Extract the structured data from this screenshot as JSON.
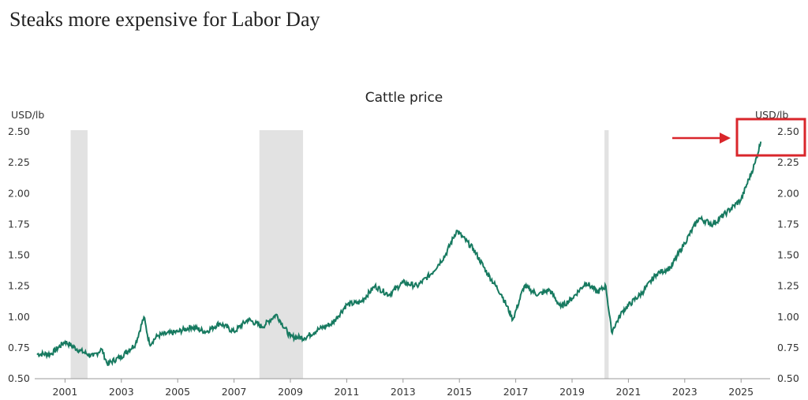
{
  "headline": "Steaks more expensive for Labor Day",
  "chart_data": {
    "type": "line",
    "title": "Cattle price",
    "ylabel_left": "USD/lb",
    "ylabel_right": "USD/lb",
    "ylim": [
      0.5,
      2.5
    ],
    "yticks": [
      "0.50",
      "0.75",
      "1.00",
      "1.25",
      "1.50",
      "1.75",
      "2.00",
      "2.25",
      "2.50"
    ],
    "xlim": [
      2000,
      2026.2
    ],
    "xticks": [
      "2001",
      "2003",
      "2005",
      "2007",
      "2009",
      "2011",
      "2013",
      "2015",
      "2017",
      "2019",
      "2021",
      "2023",
      "2025"
    ],
    "grid": false,
    "line_color": "#177a60",
    "recession_color": "#e2e2e2",
    "highlight_color": "#d9262b",
    "recessions": [
      [
        2001.2,
        2001.8
      ],
      [
        2007.9,
        2009.45
      ],
      [
        2020.15,
        2020.3
      ]
    ],
    "highlight": "latest value near 2.50",
    "series": [
      {
        "name": "Cattle price",
        "x": [
          2000.0,
          2000.5,
          2001.0,
          2001.5,
          2002.0,
          2002.3,
          2002.5,
          2003.0,
          2003.5,
          2003.8,
          2004.0,
          2004.3,
          2005.0,
          2005.5,
          2006.0,
          2006.5,
          2007.0,
          2007.5,
          2008.0,
          2008.5,
          2009.0,
          2009.5,
          2010.0,
          2010.5,
          2011.0,
          2011.5,
          2012.0,
          2012.5,
          2013.0,
          2013.5,
          2014.0,
          2014.5,
          2014.9,
          2015.5,
          2016.0,
          2016.5,
          2016.9,
          2017.3,
          2017.8,
          2018.2,
          2018.6,
          2019.0,
          2019.5,
          2019.9,
          2020.2,
          2020.4,
          2020.8,
          2021.5,
          2022.0,
          2022.5,
          2023.0,
          2023.5,
          2024.0,
          2024.5,
          2025.0,
          2025.5,
          2025.7
        ],
        "values": [
          0.7,
          0.7,
          0.8,
          0.73,
          0.68,
          0.74,
          0.62,
          0.68,
          0.78,
          1.0,
          0.78,
          0.85,
          0.88,
          0.92,
          0.88,
          0.95,
          0.88,
          0.98,
          0.92,
          1.02,
          0.84,
          0.83,
          0.9,
          0.95,
          1.1,
          1.12,
          1.25,
          1.18,
          1.28,
          1.25,
          1.35,
          1.5,
          1.7,
          1.55,
          1.35,
          1.18,
          0.98,
          1.25,
          1.18,
          1.22,
          1.08,
          1.15,
          1.28,
          1.2,
          1.25,
          0.88,
          1.05,
          1.2,
          1.35,
          1.4,
          1.6,
          1.8,
          1.75,
          1.85,
          1.95,
          2.25,
          2.42
        ]
      }
    ]
  }
}
